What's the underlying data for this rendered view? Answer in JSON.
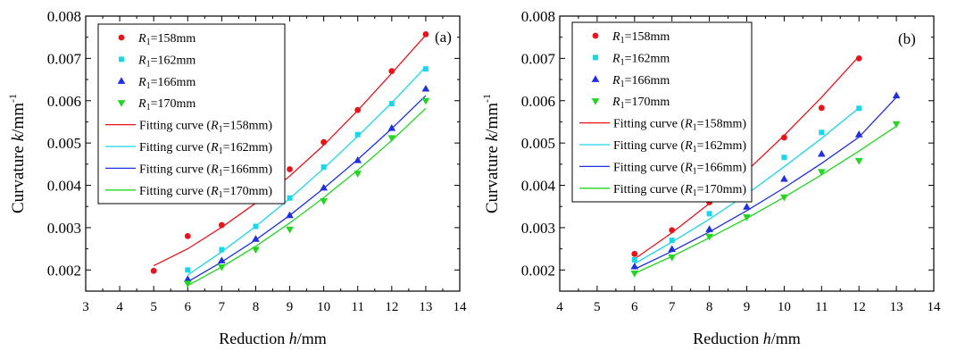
{
  "chart_data": [
    {
      "type": "scatter",
      "panel_label": "(a)",
      "xlabel_main": "Reduction ",
      "xlabel_var": "h",
      "xlabel_unit": "/mm",
      "ylabel_main": "Curvature ",
      "ylabel_var": "k",
      "ylabel_unit": "/mm",
      "ylabel_exp": "-1",
      "xlim": [
        3,
        14
      ],
      "ylim": [
        0.0015,
        0.008
      ],
      "xticks": [
        "3",
        "4",
        "5",
        "6",
        "7",
        "8",
        "9",
        "10",
        "11",
        "12",
        "13",
        "14"
      ],
      "yticks": [
        "0.002",
        "0.003",
        "0.004",
        "0.005",
        "0.006",
        "0.007",
        "0.008"
      ],
      "legend_position": "top-left",
      "series": [
        {
          "label_var": "R",
          "label_sub": "1",
          "label_rest": "=158mm",
          "fit_label_pre": "Fitting curve (",
          "fit_label_post": "=158mm)",
          "color": "#e8141c",
          "marker": "circle",
          "x": [
            5,
            6,
            7,
            8,
            9,
            10,
            11,
            12,
            13
          ],
          "y": [
            0.00198,
            0.0028,
            0.00306,
            0.00366,
            0.00438,
            0.00502,
            0.00578,
            0.0067,
            0.00757
          ],
          "fit_y": [
            0.0021,
            0.0025,
            0.00301,
            0.00358,
            0.00422,
            0.00495,
            0.00577,
            0.00665,
            0.00755
          ]
        },
        {
          "label_var": "R",
          "label_sub": "1",
          "label_rest": "=162mm",
          "fit_label_pre": "Fitting curve (",
          "fit_label_post": "=162mm)",
          "color": "#1ad6e8",
          "marker": "square",
          "x": [
            6,
            7,
            8,
            9,
            10,
            11,
            12,
            13
          ],
          "y": [
            0.002,
            0.00248,
            0.00303,
            0.0037,
            0.00443,
            0.0052,
            0.00593,
            0.00675
          ],
          "fit_y": [
            0.00188,
            0.00243,
            0.00303,
            0.00369,
            0.0044,
            0.00516,
            0.00595,
            0.0068
          ]
        },
        {
          "label_var": "R",
          "label_sub": "1",
          "label_rest": "=166mm",
          "fit_label_pre": "Fitting curve (",
          "fit_label_post": "=166mm)",
          "color": "#2030e0",
          "marker": "triangle-up",
          "x": [
            6,
            7,
            8,
            9,
            10,
            11,
            12,
            13
          ],
          "y": [
            0.00178,
            0.00222,
            0.00273,
            0.00329,
            0.00394,
            0.00459,
            0.00535,
            0.00628
          ],
          "fit_y": [
            0.00172,
            0.00219,
            0.00271,
            0.00329,
            0.00393,
            0.00461,
            0.00534,
            0.00612
          ]
        },
        {
          "label_var": "R",
          "label_sub": "1",
          "label_rest": "=170mm",
          "fit_label_pre": "Fitting curve (",
          "fit_label_post": "=170mm)",
          "color": "#22d622",
          "marker": "triangle-down",
          "x": [
            6,
            7,
            8,
            9,
            10,
            11,
            12,
            13
          ],
          "y": [
            0.00168,
            0.00207,
            0.00248,
            0.00296,
            0.00363,
            0.00428,
            0.00512,
            0.006
          ],
          "fit_y": [
            0.00163,
            0.00207,
            0.00256,
            0.00311,
            0.00371,
            0.00436,
            0.00506,
            0.00582
          ]
        }
      ]
    },
    {
      "type": "scatter",
      "panel_label": "(b)",
      "xlabel_main": "Reduction ",
      "xlabel_var": "h",
      "xlabel_unit": "/mm",
      "ylabel_main": "Curvature ",
      "ylabel_var": "k",
      "ylabel_unit": "/mm",
      "ylabel_exp": "-1",
      "xlim": [
        4,
        14
      ],
      "ylim": [
        0.0015,
        0.008
      ],
      "xticks": [
        "4",
        "5",
        "6",
        "7",
        "8",
        "9",
        "10",
        "11",
        "12",
        "13",
        "14"
      ],
      "yticks": [
        "0.002",
        "0.003",
        "0.004",
        "0.005",
        "0.006",
        "0.007",
        "0.008"
      ],
      "legend_position": "top-left",
      "series": [
        {
          "label_var": "R",
          "label_sub": "1",
          "label_rest": "=158mm",
          "fit_label_pre": "Fitting curve (",
          "fit_label_post": "=158mm)",
          "color": "#e8141c",
          "marker": "circle",
          "x": [
            6,
            7,
            8,
            9,
            10,
            11,
            12
          ],
          "y": [
            0.00238,
            0.00294,
            0.0036,
            0.00445,
            0.00513,
            0.00583,
            0.007
          ],
          "fit_y": [
            0.00226,
            0.00288,
            0.00357,
            0.00434,
            0.00518,
            0.00608,
            0.00705
          ]
        },
        {
          "label_var": "R",
          "label_sub": "1",
          "label_rest": "=162mm",
          "fit_label_pre": "Fitting curve (",
          "fit_label_post": "=162mm)",
          "color": "#1ad6e8",
          "marker": "square",
          "x": [
            6,
            7,
            8,
            9,
            10,
            11,
            12
          ],
          "y": [
            0.00224,
            0.0027,
            0.00333,
            0.00392,
            0.00466,
            0.00525,
            0.00582
          ],
          "fit_y": [
            0.00215,
            0.00266,
            0.0032,
            0.00379,
            0.00444,
            0.00511,
            0.00583
          ]
        },
        {
          "label_var": "R",
          "label_sub": "1",
          "label_rest": "=166mm",
          "fit_label_pre": "Fitting curve (",
          "fit_label_post": "=166mm)",
          "color": "#2030e0",
          "marker": "triangle-up",
          "x": [
            6,
            7,
            8,
            9,
            10,
            11,
            12,
            13
          ],
          "y": [
            0.00208,
            0.00249,
            0.00296,
            0.00349,
            0.00415,
            0.00474,
            0.0052,
            0.00612
          ],
          "fit_y": [
            0.00202,
            0.00244,
            0.0029,
            0.0034,
            0.00394,
            0.00452,
            0.00514,
            0.00608
          ]
        },
        {
          "label_var": "R",
          "label_sub": "1",
          "label_rest": "=170mm",
          "fit_label_pre": "Fitting curve (",
          "fit_label_post": "=170mm)",
          "color": "#22d622",
          "marker": "triangle-down",
          "x": [
            6,
            7,
            8,
            9,
            10,
            11,
            12,
            13
          ],
          "y": [
            0.00192,
            0.0023,
            0.00279,
            0.00325,
            0.00372,
            0.00432,
            0.00458,
            0.00545
          ],
          "fit_y": [
            0.00192,
            0.00232,
            0.00276,
            0.00322,
            0.00372,
            0.00425,
            0.00481,
            0.0054
          ]
        }
      ]
    }
  ]
}
